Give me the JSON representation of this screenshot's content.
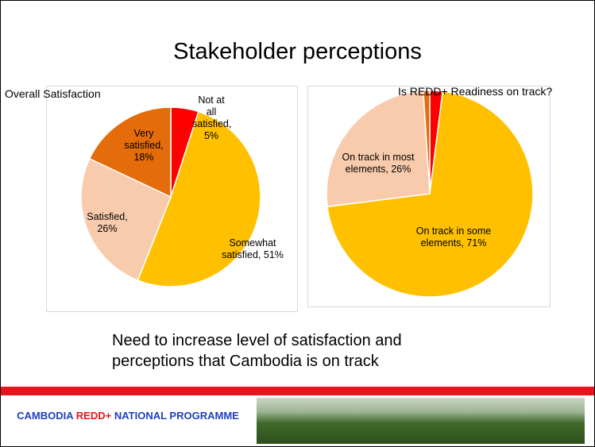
{
  "title": "Stakeholder perceptions",
  "message": "Need to increase level of satisfaction and perceptions that Cambodia is on track",
  "footer": {
    "part1": "CAMBODIA",
    "part2": "REDD+",
    "part3": "NATIONAL PROGRAMME"
  },
  "chart_data": [
    {
      "type": "pie",
      "title": "Overall Satisfaction",
      "values": [
        5,
        51,
        26,
        18
      ],
      "value_labels": [
        "Not at all satisfied, 5%",
        "Somewhat satisfied, 51%",
        "Satisfied, 26%",
        "Very satisfied, 18%"
      ],
      "colors": [
        "#ff0000",
        "#ffc000",
        "#f8cbad",
        "#e46c0a"
      ]
    },
    {
      "type": "pie",
      "title": "Is REDD+ Readiness on track?",
      "values": [
        2,
        71,
        26,
        1
      ],
      "value_labels": [
        null,
        "On track in some elements, 71%",
        "On track in most elements, 26%",
        null
      ],
      "colors": [
        "#ff0000",
        "#ffc000",
        "#f8cbad",
        "#e46c0a"
      ]
    }
  ]
}
